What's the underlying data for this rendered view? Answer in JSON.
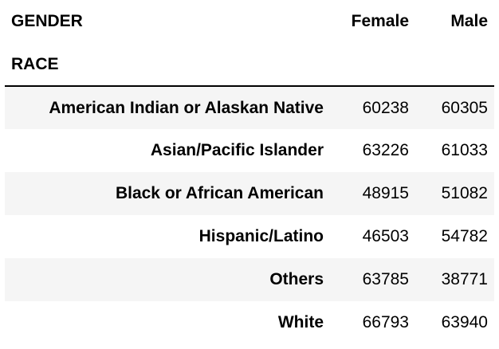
{
  "table": {
    "column_index_name": "GENDER",
    "row_index_name": "RACE",
    "columns": [
      "Female",
      "Male"
    ],
    "rows": [
      {
        "label": "American Indian or Alaskan Native",
        "female": "60238",
        "male": "60305"
      },
      {
        "label": "Asian/Pacific Islander",
        "female": "63226",
        "male": "61033"
      },
      {
        "label": "Black or African American",
        "female": "48915",
        "male": "51082"
      },
      {
        "label": "Hispanic/Latino",
        "female": "46503",
        "male": "54782"
      },
      {
        "label": "Others",
        "female": "63785",
        "male": "38771"
      },
      {
        "label": "White",
        "female": "66793",
        "male": "63940"
      }
    ]
  }
}
